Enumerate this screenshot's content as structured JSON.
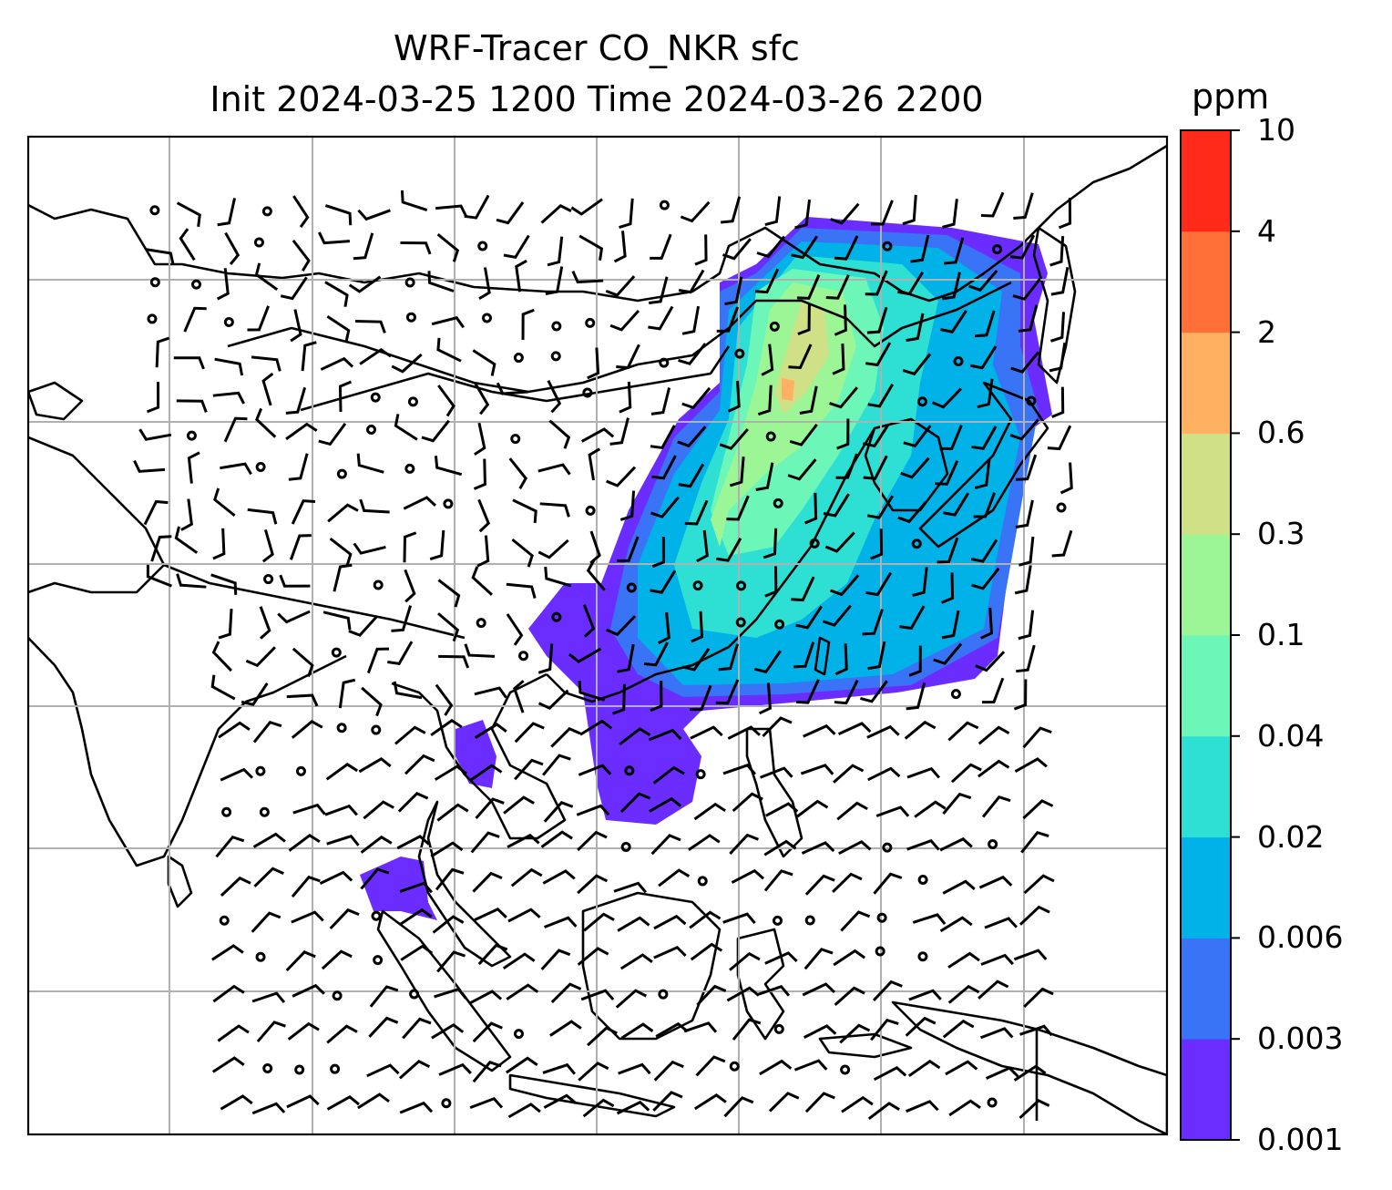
{
  "title_line1": "WRF-Tracer CO_NKR sfc",
  "title_line2": "Init 2024-03-25 1200 Time 2024-03-26 2200",
  "colorbar": {
    "unit": "ppm",
    "levels": [
      "0.001",
      "0.003",
      "0.006",
      "0.02",
      "0.04",
      "0.1",
      "0.3",
      "0.6",
      "2",
      "4",
      "10"
    ],
    "colors": [
      "#6a2cff",
      "#3874f5",
      "#00b2e8",
      "#2ee0d4",
      "#6cf6b8",
      "#9cf696",
      "#d0e086",
      "#ffb060",
      "#ff7038",
      "#ff2a1a"
    ]
  },
  "map": {
    "region": "South / East / Southeast Asia",
    "graticule": "on",
    "features": [
      "coastlines",
      "country borders",
      "10 m wind barbs",
      "CO_NKR tracer concentration (filled)"
    ]
  }
}
